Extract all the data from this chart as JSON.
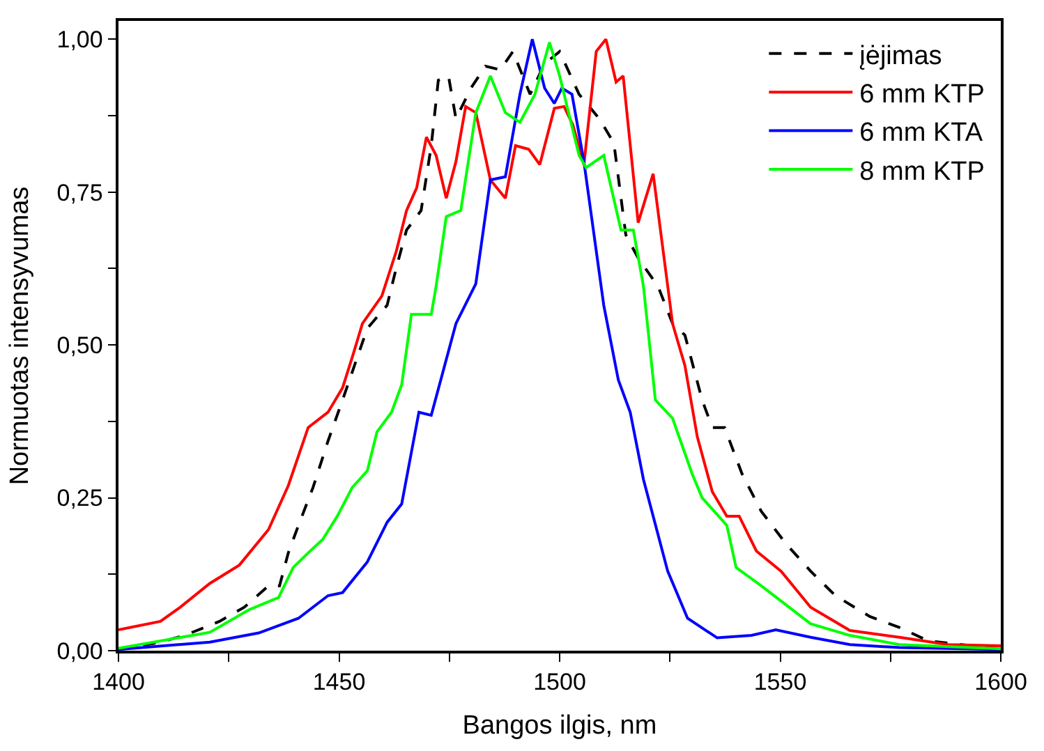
{
  "chart_data": {
    "type": "line",
    "xlabel": "Bangos ilgis, nm",
    "ylabel": "Normuotas intensyvumas",
    "xlim": [
      1400,
      1600
    ],
    "xticks": [
      1400,
      {
        "value": 1425,
        "label": null
      },
      1450,
      {
        "value": 1475,
        "label": null
      },
      1500,
      {
        "value": 1525,
        "label": null
      },
      1550,
      {
        "value": 1575,
        "label": null
      },
      1600
    ],
    "ylim": [
      0,
      1.03
    ],
    "yticks": [
      {
        "value": 0,
        "label": "0,00"
      },
      {
        "value": 0.125,
        "label": null
      },
      {
        "value": 0.25,
        "label": "0,25"
      },
      {
        "value": 0.375,
        "label": null
      },
      {
        "value": 0.5,
        "label": "0,50"
      },
      {
        "value": 0.625,
        "label": null
      },
      {
        "value": 0.75,
        "label": "0,75"
      },
      {
        "value": 0.875,
        "label": null
      },
      {
        "value": 1,
        "label": "1,00"
      }
    ],
    "legend": "top right",
    "series": [
      {
        "name": "įėjimas",
        "color": "#000000",
        "line_style": "dashed",
        "x": [
          1400,
          1409.5,
          1415,
          1422.9,
          1428.5,
          1434,
          1436.5,
          1438.5,
          1440.8,
          1444.1,
          1447.5,
          1450.8,
          1453,
          1456.4,
          1460.9,
          1463,
          1465.3,
          1468.6,
          1470.9,
          1472.5,
          1474.8,
          1476.5,
          1479.9,
          1483.2,
          1486.6,
          1489.4,
          1493.3,
          1496.6,
          1500,
          1504.4,
          1509,
          1512.3,
          1515,
          1517.8,
          1522.3,
          1525.6,
          1528.4,
          1532.3,
          1534.6,
          1537.4,
          1541.3,
          1545.7,
          1551.3,
          1556.9,
          1562.5,
          1570.3,
          1577,
          1583.6,
          1600
        ],
        "values": [
          0.002,
          0.014,
          0.025,
          0.048,
          0.071,
          0.106,
          0.106,
          0.16,
          0.205,
          0.267,
          0.343,
          0.41,
          0.456,
          0.527,
          0.565,
          0.627,
          0.688,
          0.72,
          0.826,
          0.933,
          0.94,
          0.87,
          0.92,
          0.956,
          0.95,
          0.98,
          0.91,
          0.96,
          0.98,
          0.91,
          0.87,
          0.83,
          0.68,
          0.642,
          0.596,
          0.535,
          0.516,
          0.41,
          0.365,
          0.365,
          0.29,
          0.228,
          0.175,
          0.13,
          0.09,
          0.056,
          0.038,
          0.016,
          0.003
        ]
      },
      {
        "name": "6 mm KTP",
        "color": "#ff0000",
        "x": [
          1400,
          1409.5,
          1414,
          1420.7,
          1427.4,
          1434,
          1438.5,
          1443,
          1447.5,
          1450.8,
          1453,
          1455.3,
          1459.7,
          1463,
          1465.3,
          1467.6,
          1469.8,
          1472,
          1474.3,
          1476.5,
          1478.7,
          1481,
          1484.3,
          1487.7,
          1490,
          1493,
          1495.5,
          1498.8,
          1501,
          1503,
          1505.5,
          1508.3,
          1510.5,
          1512.8,
          1514.4,
          1517.8,
          1521.2,
          1525.6,
          1528.4,
          1531.2,
          1534.6,
          1537.9,
          1540.7,
          1544.6,
          1550.2,
          1556.9,
          1565.8,
          1577,
          1588,
          1600
        ],
        "values": [
          0.034,
          0.048,
          0.071,
          0.11,
          0.14,
          0.198,
          0.27,
          0.365,
          0.39,
          0.43,
          0.48,
          0.535,
          0.58,
          0.654,
          0.72,
          0.757,
          0.84,
          0.81,
          0.74,
          0.8,
          0.89,
          0.88,
          0.77,
          0.74,
          0.826,
          0.82,
          0.795,
          0.887,
          0.89,
          0.86,
          0.795,
          0.98,
          1.0,
          0.93,
          0.94,
          0.7,
          0.78,
          0.535,
          0.466,
          0.35,
          0.26,
          0.22,
          0.22,
          0.163,
          0.13,
          0.071,
          0.033,
          0.022,
          0.01,
          0.008
        ]
      },
      {
        "name": "6 mm KTA",
        "color": "#0000ff",
        "x": [
          1400,
          1420.7,
          1431.8,
          1440.8,
          1447.5,
          1450.8,
          1456.4,
          1460.9,
          1464.2,
          1468.1,
          1470.9,
          1476.5,
          1481,
          1484.3,
          1487.7,
          1491,
          1493.8,
          1496.6,
          1498.8,
          1500.5,
          1502.8,
          1505.5,
          1510,
          1513.3,
          1516,
          1519,
          1524.5,
          1529,
          1535.7,
          1543.5,
          1549,
          1556.9,
          1565.8,
          1577,
          1600
        ],
        "values": [
          0.002,
          0.014,
          0.029,
          0.053,
          0.09,
          0.095,
          0.145,
          0.21,
          0.24,
          0.39,
          0.385,
          0.535,
          0.6,
          0.77,
          0.775,
          0.91,
          1.0,
          0.92,
          0.895,
          0.92,
          0.91,
          0.8,
          0.565,
          0.443,
          0.39,
          0.28,
          0.13,
          0.053,
          0.021,
          0.025,
          0.034,
          0.022,
          0.01,
          0.005,
          0.002
        ]
      },
      {
        "name": "8 mm KTP",
        "color": "#00ff00",
        "x": [
          1400,
          1420.7,
          1429.6,
          1436.3,
          1439.6,
          1443,
          1446.3,
          1449.6,
          1453,
          1456.4,
          1458.6,
          1461.9,
          1464.2,
          1466.4,
          1470.9,
          1472,
          1474.3,
          1477.6,
          1481,
          1484.3,
          1487.7,
          1491,
          1494.4,
          1497.7,
          1500,
          1504.4,
          1506,
          1510,
          1513.9,
          1516.7,
          1519,
          1521.7,
          1525.6,
          1530,
          1532.3,
          1537.9,
          1540,
          1545.7,
          1551.3,
          1556.9,
          1565.8,
          1577,
          1600
        ],
        "values": [
          0.004,
          0.03,
          0.067,
          0.087,
          0.136,
          0.16,
          0.182,
          0.22,
          0.267,
          0.294,
          0.358,
          0.39,
          0.435,
          0.55,
          0.55,
          0.596,
          0.71,
          0.72,
          0.88,
          0.94,
          0.88,
          0.864,
          0.91,
          0.995,
          0.94,
          0.81,
          0.79,
          0.81,
          0.688,
          0.688,
          0.596,
          0.41,
          0.38,
          0.29,
          0.25,
          0.205,
          0.136,
          0.106,
          0.075,
          0.044,
          0.025,
          0.01,
          0.003
        ]
      }
    ]
  }
}
